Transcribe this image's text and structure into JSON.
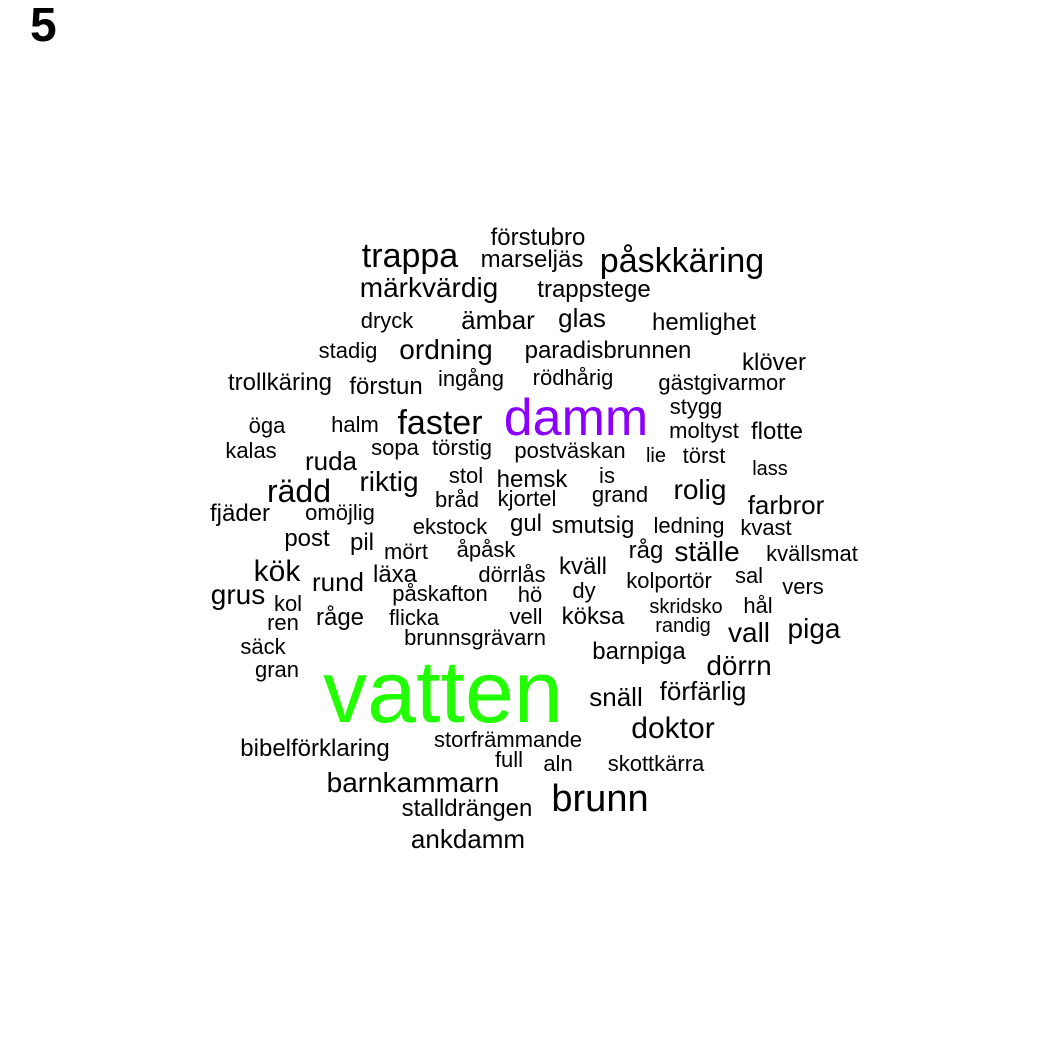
{
  "panel_label": "5",
  "colors": {
    "default": "#000000",
    "highlight_green": "#22ff00",
    "highlight_purple": "#8c00ff"
  },
  "words": [
    {
      "text": "vatten",
      "color": "highlight_green"
    },
    {
      "text": "damm",
      "color": "highlight_purple"
    },
    {
      "text": "förstubro"
    },
    {
      "text": "trappa"
    },
    {
      "text": "marseljäs"
    },
    {
      "text": "påskkäring"
    },
    {
      "text": "märkvärdig"
    },
    {
      "text": "trappstege"
    },
    {
      "text": "dryck"
    },
    {
      "text": "ämbar"
    },
    {
      "text": "glas"
    },
    {
      "text": "hemlighet"
    },
    {
      "text": "stadig"
    },
    {
      "text": "ordning"
    },
    {
      "text": "paradisbrunnen"
    },
    {
      "text": "klöver"
    },
    {
      "text": "trollkäring"
    },
    {
      "text": "förstun"
    },
    {
      "text": "ingång"
    },
    {
      "text": "rödhårig"
    },
    {
      "text": "gästgivarmor"
    },
    {
      "text": "stygg"
    },
    {
      "text": "öga"
    },
    {
      "text": "halm"
    },
    {
      "text": "faster"
    },
    {
      "text": "moltyst"
    },
    {
      "text": "flotte"
    },
    {
      "text": "kalas"
    },
    {
      "text": "sopa"
    },
    {
      "text": "törstig"
    },
    {
      "text": "postväskan"
    },
    {
      "text": "lie"
    },
    {
      "text": "törst"
    },
    {
      "text": "ruda"
    },
    {
      "text": "lass"
    },
    {
      "text": "stol"
    },
    {
      "text": "is"
    },
    {
      "text": "rädd"
    },
    {
      "text": "riktig"
    },
    {
      "text": "hemsk"
    },
    {
      "text": "rolig"
    },
    {
      "text": "bråd"
    },
    {
      "text": "kjortel"
    },
    {
      "text": "grand"
    },
    {
      "text": "farbror"
    },
    {
      "text": "fjäder"
    },
    {
      "text": "omöjlig"
    },
    {
      "text": "gul"
    },
    {
      "text": "smutsig"
    },
    {
      "text": "ledning"
    },
    {
      "text": "kvast"
    },
    {
      "text": "ekstock"
    },
    {
      "text": "post"
    },
    {
      "text": "pil"
    },
    {
      "text": "mört"
    },
    {
      "text": "åpåsk"
    },
    {
      "text": "råg"
    },
    {
      "text": "ställe"
    },
    {
      "text": "kvällsmat"
    },
    {
      "text": "kök"
    },
    {
      "text": "kväll"
    },
    {
      "text": "rund"
    },
    {
      "text": "läxa"
    },
    {
      "text": "dörrlås"
    },
    {
      "text": "sal"
    },
    {
      "text": "kolportör"
    },
    {
      "text": "vers"
    },
    {
      "text": "grus"
    },
    {
      "text": "dy"
    },
    {
      "text": "påskafton"
    },
    {
      "text": "hö"
    },
    {
      "text": "kol"
    },
    {
      "text": "skridsko"
    },
    {
      "text": "hål"
    },
    {
      "text": "ren"
    },
    {
      "text": "råge"
    },
    {
      "text": "flicka"
    },
    {
      "text": "vell"
    },
    {
      "text": "köksa"
    },
    {
      "text": "randig"
    },
    {
      "text": "vall"
    },
    {
      "text": "piga"
    },
    {
      "text": "brunnsgrävarn"
    },
    {
      "text": "säck"
    },
    {
      "text": "barnpiga"
    },
    {
      "text": "gran"
    },
    {
      "text": "dörrn"
    },
    {
      "text": "förfärlig"
    },
    {
      "text": "snäll"
    },
    {
      "text": "doktor"
    },
    {
      "text": "storfrämmande"
    },
    {
      "text": "bibelförklaring"
    },
    {
      "text": "full"
    },
    {
      "text": "aln"
    },
    {
      "text": "skottkärra"
    },
    {
      "text": "barnkammarn"
    },
    {
      "text": "brunn"
    },
    {
      "text": "stalldrängen"
    },
    {
      "text": "ankdamm"
    }
  ]
}
